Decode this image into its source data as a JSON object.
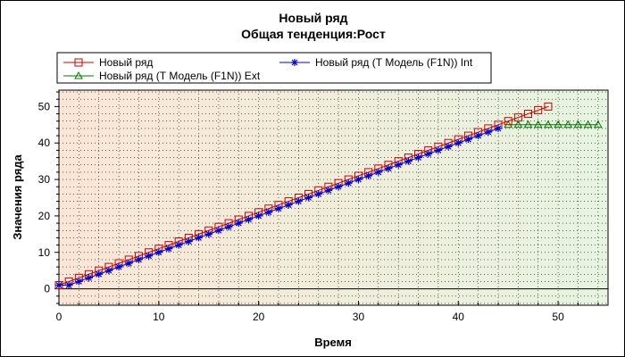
{
  "chart_data": {
    "type": "line",
    "title": "Новый ряд",
    "subtitle": "Общая  тенденция:Рост",
    "xlabel": "Время",
    "ylabel": "Значения ряда",
    "xlim": [
      0,
      55
    ],
    "ylim": [
      -4.5,
      54.5
    ],
    "x_ticks": [
      0,
      10,
      20,
      30,
      40,
      50
    ],
    "y_ticks": [
      0,
      10,
      20,
      30,
      40,
      50
    ],
    "grid": true,
    "legend_position": "top",
    "background_gradient": [
      "#fbe6d6",
      "#e6f4e0"
    ],
    "series": [
      {
        "name": "Новый ряд",
        "marker": "square",
        "color": "#cc0000",
        "x": [
          0,
          1,
          2,
          3,
          4,
          5,
          6,
          7,
          8,
          9,
          10,
          11,
          12,
          13,
          14,
          15,
          16,
          17,
          18,
          19,
          20,
          21,
          22,
          23,
          24,
          25,
          26,
          27,
          28,
          29,
          30,
          31,
          32,
          33,
          34,
          35,
          36,
          37,
          38,
          39,
          40,
          41,
          42,
          43,
          44,
          45,
          46,
          47,
          48,
          49
        ],
        "y": [
          1,
          2,
          3,
          4,
          5,
          6,
          7,
          8,
          9,
          10,
          11,
          12,
          13,
          14,
          15,
          16,
          17,
          18,
          19,
          20,
          21,
          22,
          23,
          24,
          25,
          26,
          27,
          28,
          29,
          30,
          31,
          32,
          33,
          34,
          35,
          36,
          37,
          38,
          39,
          40,
          41,
          42,
          43,
          44,
          45,
          46,
          47,
          48,
          49,
          50
        ]
      },
      {
        "name": "Новый ряд (Т Модель (F1N)) Int",
        "marker": "asterisk",
        "color": "#0000cc",
        "x": [
          0,
          1,
          2,
          3,
          4,
          5,
          6,
          7,
          8,
          9,
          10,
          11,
          12,
          13,
          14,
          15,
          16,
          17,
          18,
          19,
          20,
          21,
          22,
          23,
          24,
          25,
          26,
          27,
          28,
          29,
          30,
          31,
          32,
          33,
          34,
          35,
          36,
          37,
          38,
          39,
          40,
          41,
          42,
          43,
          44
        ],
        "y": [
          1,
          1,
          2,
          3,
          4,
          5,
          6,
          7,
          8,
          9,
          10,
          11,
          12,
          13,
          14,
          15,
          16,
          17,
          18,
          19,
          20,
          21,
          22,
          23,
          24,
          25,
          26,
          27,
          28,
          29,
          30,
          31,
          32,
          33,
          34,
          35,
          36,
          37,
          38,
          39,
          40,
          41,
          42,
          43,
          44
        ]
      },
      {
        "name": "Новый ряд (Т Модель (F1N)) Ext",
        "marker": "triangle",
        "color": "#007700",
        "x": [
          45,
          46,
          47,
          48,
          49,
          50,
          51,
          52,
          53,
          54
        ],
        "y": [
          45,
          45,
          45,
          45,
          45,
          45,
          45,
          45,
          45,
          45
        ]
      }
    ]
  }
}
